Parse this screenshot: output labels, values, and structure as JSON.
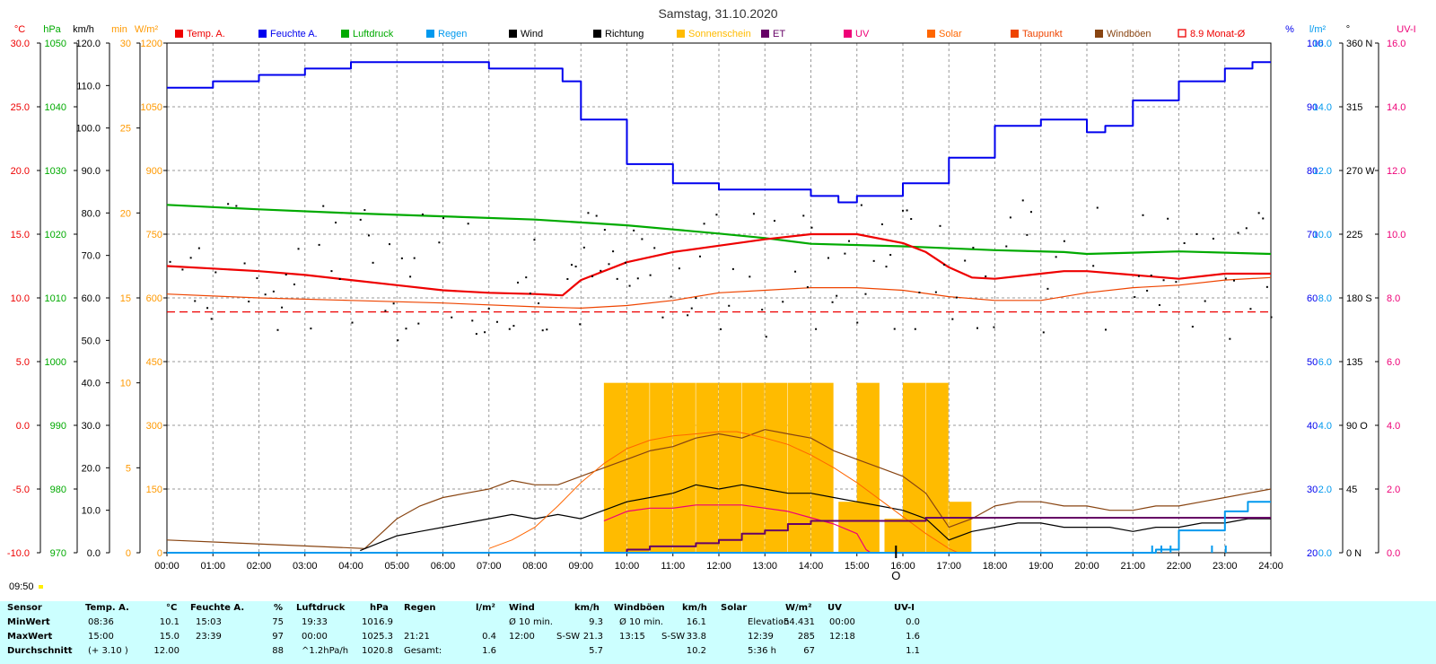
{
  "title": "Samstag, 31.10.2020",
  "colors": {
    "temp": "#ee0000",
    "humidity": "#0000ee",
    "pressure": "#00aa00",
    "rain": "#0099ee",
    "wind": "#000000",
    "direction": "#000000",
    "sunshine": "#ffbb00",
    "et": "#660066",
    "uv": "#ee0077",
    "solar": "#ff6600",
    "dewpoint": "#ee4400",
    "gust": "#884411",
    "month_avg": "#ee0000"
  },
  "legend": [
    {
      "label": "Temp. A.",
      "color": "#ee0000",
      "kind": "box"
    },
    {
      "label": "Feuchte A.",
      "color": "#0000ee",
      "kind": "box"
    },
    {
      "label": "Luftdruck",
      "color": "#00aa00",
      "kind": "box"
    },
    {
      "label": "Regen",
      "color": "#0099ee",
      "kind": "box"
    },
    {
      "label": "Wind",
      "color": "#000000",
      "kind": "box"
    },
    {
      "label": "Richtung",
      "color": "#000000",
      "kind": "box"
    },
    {
      "label": "Sonnenschein",
      "color": "#ffbb00",
      "kind": "box"
    },
    {
      "label": "ET",
      "color": "#660066",
      "kind": "box"
    },
    {
      "label": "UV",
      "color": "#ee0077",
      "kind": "box"
    },
    {
      "label": "Solar",
      "color": "#ff6600",
      "kind": "box"
    },
    {
      "label": "Taupunkt",
      "color": "#ee4400",
      "kind": "box"
    },
    {
      "label": "Windböen",
      "color": "#884411",
      "kind": "box"
    },
    {
      "label": "8.9 Monat-Ø",
      "color": "#ee0000",
      "kind": "outline"
    }
  ],
  "axes_left": [
    {
      "unit": "°C",
      "color": "#ee0000",
      "ticks": [
        "30.0",
        "25.0",
        "20.0",
        "15.0",
        "10.0",
        "5.0",
        "0.0",
        "-5.0",
        "-10.0"
      ]
    },
    {
      "unit": "hPa",
      "color": "#00aa00",
      "ticks": [
        "1050",
        "1040",
        "1030",
        "1020",
        "1010",
        "1000",
        "990",
        "980",
        "970"
      ]
    },
    {
      "unit": "km/h",
      "color": "#000000",
      "ticks": [
        "120.0",
        "110.0",
        "100.0",
        "90.0",
        "80.0",
        "70.0",
        "60.0",
        "50.0",
        "40.0",
        "30.0",
        "20.0",
        "10.0",
        "0.0"
      ]
    },
    {
      "unit": "min",
      "color": "#ff9900",
      "ticks": [
        "30",
        "25",
        "20",
        "15",
        "10",
        "5",
        "0"
      ]
    },
    {
      "unit": "W/m²",
      "color": "#ff9900",
      "ticks": [
        "1200",
        "1050",
        "900",
        "750",
        "600",
        "450",
        "300",
        "150",
        "0"
      ]
    }
  ],
  "axes_right": [
    {
      "unit": "%",
      "color": "#0000ee",
      "ticks": [
        "100",
        "90",
        "80",
        "70",
        "60",
        "50",
        "40",
        "30",
        "20"
      ]
    },
    {
      "unit": "l/m²",
      "color": "#0099ee",
      "ticks": [
        "16.0",
        "14.0",
        "12.0",
        "10.0",
        "8.0",
        "6.0",
        "4.0",
        "2.0",
        "0.0"
      ]
    },
    {
      "unit": "°",
      "color": "#000000",
      "ticks": [
        "360 N",
        "315",
        "270 W",
        "225",
        "180 S",
        "135",
        "90 O",
        "45",
        "0 N"
      ]
    },
    {
      "unit": "UV-I",
      "color": "#ee0077",
      "ticks": [
        "16.0",
        "14.0",
        "12.0",
        "10.0",
        "8.0",
        "6.0",
        "4.0",
        "2.0",
        "0.0"
      ]
    }
  ],
  "x_ticks": [
    "00:00",
    "01:00",
    "02:00",
    "03:00",
    "04:00",
    "05:00",
    "06:00",
    "07:00",
    "08:00",
    "09:00",
    "10:00",
    "11:00",
    "12:00",
    "13:00",
    "14:00",
    "15:00",
    "16:00",
    "17:00",
    "18:00",
    "19:00",
    "20:00",
    "21:00",
    "22:00",
    "23:00",
    "24:00"
  ],
  "bottom_left_time": "09:50",
  "moon_mark": "O",
  "chart_data": {
    "type": "line",
    "x_unit": "hour",
    "xlim": [
      0,
      24
    ],
    "month_avg_temp": 8.9,
    "series": [
      {
        "name": "Temp. A.",
        "axis": "temp",
        "points": [
          [
            0,
            12.5
          ],
          [
            1,
            12.3
          ],
          [
            2,
            12.1
          ],
          [
            3,
            11.8
          ],
          [
            4,
            11.4
          ],
          [
            5,
            11.0
          ],
          [
            6,
            10.6
          ],
          [
            7,
            10.4
          ],
          [
            8,
            10.3
          ],
          [
            8.6,
            10.2
          ],
          [
            9,
            11.4
          ],
          [
            10,
            12.8
          ],
          [
            11,
            13.6
          ],
          [
            12,
            14.1
          ],
          [
            13,
            14.6
          ],
          [
            14,
            15.0
          ],
          [
            15,
            15.0
          ],
          [
            16,
            14.3
          ],
          [
            16.5,
            13.6
          ],
          [
            17,
            12.4
          ],
          [
            17.5,
            11.6
          ],
          [
            18,
            11.5
          ],
          [
            19,
            11.9
          ],
          [
            19.5,
            12.1
          ],
          [
            20,
            12.1
          ],
          [
            21,
            11.8
          ],
          [
            22,
            11.5
          ],
          [
            23,
            11.9
          ],
          [
            24,
            11.9
          ]
        ]
      },
      {
        "name": "Feuchte A.",
        "axis": "hum",
        "points": [
          [
            0,
            93
          ],
          [
            0.6,
            93
          ],
          [
            1,
            94
          ],
          [
            2,
            95
          ],
          [
            3,
            96
          ],
          [
            4,
            97
          ],
          [
            6,
            97
          ],
          [
            7,
            96
          ],
          [
            8,
            96
          ],
          [
            8.6,
            94
          ],
          [
            9,
            88
          ],
          [
            10,
            81
          ],
          [
            11,
            78
          ],
          [
            12,
            77
          ],
          [
            13,
            77
          ],
          [
            14,
            76
          ],
          [
            14.6,
            75
          ],
          [
            15,
            76
          ],
          [
            16,
            78
          ],
          [
            17,
            82
          ],
          [
            18,
            87
          ],
          [
            19,
            88
          ],
          [
            20,
            86
          ],
          [
            20.4,
            87
          ],
          [
            21,
            91
          ],
          [
            22,
            94
          ],
          [
            23,
            96
          ],
          [
            23.6,
            97
          ],
          [
            24,
            97
          ]
        ]
      },
      {
        "name": "Luftdruck",
        "axis": "press",
        "points": [
          [
            0,
            1024.6
          ],
          [
            2,
            1023.9
          ],
          [
            4,
            1023.3
          ],
          [
            6,
            1022.8
          ],
          [
            8,
            1022.3
          ],
          [
            10,
            1021.4
          ],
          [
            12,
            1020.1
          ],
          [
            13,
            1019.4
          ],
          [
            14,
            1018.5
          ],
          [
            16,
            1018.1
          ],
          [
            18,
            1017.5
          ],
          [
            19.5,
            1017.2
          ],
          [
            20,
            1016.9
          ],
          [
            22,
            1017.3
          ],
          [
            24,
            1016.9
          ]
        ]
      },
      {
        "name": "Taupunkt",
        "axis": "temp",
        "points": [
          [
            0,
            10.3
          ],
          [
            2,
            10.0
          ],
          [
            4,
            9.8
          ],
          [
            6,
            9.6
          ],
          [
            8,
            9.3
          ],
          [
            9,
            9.2
          ],
          [
            10,
            9.4
          ],
          [
            11,
            9.8
          ],
          [
            12,
            10.4
          ],
          [
            13,
            10.6
          ],
          [
            14,
            10.8
          ],
          [
            15,
            10.8
          ],
          [
            16,
            10.6
          ],
          [
            17,
            10.1
          ],
          [
            18,
            9.8
          ],
          [
            19,
            9.8
          ],
          [
            20,
            10.4
          ],
          [
            21,
            10.8
          ],
          [
            22,
            11.0
          ],
          [
            23,
            11.4
          ],
          [
            24,
            11.6
          ]
        ]
      },
      {
        "name": "Solar",
        "axis": "solar",
        "points": [
          [
            7,
            10
          ],
          [
            7.5,
            30
          ],
          [
            8,
            60
          ],
          [
            8.5,
            110
          ],
          [
            9,
            165
          ],
          [
            9.5,
            210
          ],
          [
            10,
            245
          ],
          [
            10.5,
            265
          ],
          [
            11,
            275
          ],
          [
            11.5,
            280
          ],
          [
            12,
            285
          ],
          [
            12.39,
            285
          ],
          [
            12.8,
            275
          ],
          [
            13,
            270
          ],
          [
            13.5,
            255
          ],
          [
            14,
            230
          ],
          [
            14.5,
            200
          ],
          [
            15,
            165
          ],
          [
            15.5,
            125
          ],
          [
            16,
            85
          ],
          [
            16.5,
            45
          ],
          [
            17,
            10
          ],
          [
            17.2,
            0
          ]
        ]
      },
      {
        "name": "UV",
        "axis": "uv",
        "points": [
          [
            9.5,
            1.0
          ],
          [
            10,
            1.3
          ],
          [
            10.5,
            1.4
          ],
          [
            11,
            1.4
          ],
          [
            11.5,
            1.5
          ],
          [
            12,
            1.5
          ],
          [
            12.5,
            1.5
          ],
          [
            13,
            1.4
          ],
          [
            13.5,
            1.3
          ],
          [
            14,
            1.1
          ],
          [
            14.5,
            0.9
          ],
          [
            15,
            0.6
          ],
          [
            15.2,
            0.1
          ],
          [
            15.3,
            0
          ]
        ]
      },
      {
        "name": "ET",
        "axis": "uv",
        "points": [
          [
            9,
            0
          ],
          [
            10,
            0.1
          ],
          [
            10.5,
            0.2
          ],
          [
            11,
            0.2
          ],
          [
            11.5,
            0.3
          ],
          [
            12,
            0.4
          ],
          [
            12.5,
            0.6
          ],
          [
            13,
            0.7
          ],
          [
            13.5,
            0.9
          ],
          [
            14,
            1.0
          ],
          [
            14.5,
            1.0
          ],
          [
            15,
            1.0
          ],
          [
            15.5,
            1.0
          ],
          [
            16,
            1.0
          ],
          [
            16.5,
            1.1
          ],
          [
            24,
            1.1
          ]
        ]
      },
      {
        "name": "Regen",
        "axis": "rain",
        "points": [
          [
            0,
            0
          ],
          [
            21.2,
            0
          ],
          [
            21.5,
            0.1
          ],
          [
            22,
            0.7
          ],
          [
            23,
            1.3
          ],
          [
            23.5,
            1.6
          ],
          [
            24,
            1.6
          ]
        ]
      }
    ],
    "wind_points": [
      [
        4.2,
        0.5
      ],
      [
        5,
        4
      ],
      [
        5.5,
        5
      ],
      [
        6,
        6
      ],
      [
        6.5,
        7
      ],
      [
        7,
        8
      ],
      [
        7.5,
        9
      ],
      [
        8,
        8
      ],
      [
        8.5,
        9
      ],
      [
        9,
        8
      ],
      [
        9.5,
        10
      ],
      [
        10,
        12
      ],
      [
        10.5,
        13
      ],
      [
        11,
        14
      ],
      [
        11.5,
        16
      ],
      [
        12,
        15
      ],
      [
        12.5,
        16
      ],
      [
        13,
        15
      ],
      [
        13.5,
        14
      ],
      [
        14,
        14
      ],
      [
        14.5,
        13
      ],
      [
        15,
        12
      ],
      [
        15.5,
        11
      ],
      [
        16,
        10
      ],
      [
        16.5,
        8
      ],
      [
        17,
        3
      ],
      [
        17.5,
        5
      ],
      [
        18,
        6
      ],
      [
        18.5,
        7
      ],
      [
        19,
        7
      ],
      [
        19.5,
        6
      ],
      [
        20,
        6
      ],
      [
        20.5,
        6
      ],
      [
        21,
        5
      ],
      [
        21.5,
        6
      ],
      [
        22,
        6
      ],
      [
        22.5,
        7
      ],
      [
        23,
        7
      ],
      [
        23.5,
        8
      ],
      [
        24,
        8
      ]
    ],
    "gust_points": [
      [
        0,
        3
      ],
      [
        4.3,
        1
      ],
      [
        5,
        8
      ],
      [
        5.5,
        11
      ],
      [
        6,
        13
      ],
      [
        6.5,
        14
      ],
      [
        7,
        15
      ],
      [
        7.5,
        17
      ],
      [
        8,
        16
      ],
      [
        8.5,
        16
      ],
      [
        9,
        18
      ],
      [
        9.5,
        20
      ],
      [
        10,
        22
      ],
      [
        10.5,
        24
      ],
      [
        11,
        25
      ],
      [
        11.5,
        27
      ],
      [
        12,
        28
      ],
      [
        12.5,
        27
      ],
      [
        13,
        29
      ],
      [
        13.5,
        28
      ],
      [
        14,
        27
      ],
      [
        14.5,
        24
      ],
      [
        15,
        22
      ],
      [
        15.5,
        20
      ],
      [
        16,
        18
      ],
      [
        16.5,
        14
      ],
      [
        17,
        6
      ],
      [
        17.5,
        8
      ],
      [
        18,
        11
      ],
      [
        18.5,
        12
      ],
      [
        19,
        12
      ],
      [
        19.5,
        11
      ],
      [
        20,
        11
      ],
      [
        20.5,
        10
      ],
      [
        21,
        10
      ],
      [
        21.5,
        11
      ],
      [
        22,
        11
      ],
      [
        22.5,
        12
      ],
      [
        23,
        13
      ],
      [
        23.5,
        14
      ],
      [
        24,
        15
      ]
    ],
    "sunshine_minutes": [
      [
        9.5,
        10
      ],
      [
        10,
        10
      ],
      [
        10.5,
        10
      ],
      [
        11,
        10
      ],
      [
        11.5,
        10
      ],
      [
        12,
        10
      ],
      [
        12.5,
        10
      ],
      [
        13,
        10
      ],
      [
        13.5,
        10
      ],
      [
        14,
        10
      ],
      [
        14.6,
        3
      ],
      [
        15,
        10
      ],
      [
        15.6,
        2
      ],
      [
        16,
        10
      ],
      [
        16.5,
        10
      ],
      [
        17,
        3
      ]
    ],
    "direction_range_deg": [
      150,
      250
    ],
    "stats": {
      "headers": {
        "sensor": "Sensor",
        "temp": "Temp. A.",
        "temp_unit": "°C",
        "hum": "Feuchte A.",
        "hum_unit": "%",
        "press": "Luftdruck",
        "press_unit": "hPa",
        "rain": "Regen",
        "rain_unit": "l/m²",
        "wind": "Wind",
        "wind_unit": "km/h",
        "gust": "Windböen",
        "gust_unit": "km/h",
        "solar": "Solar",
        "solar_unit": "W/m²",
        "uv": "UV",
        "uv_unit": "UV-I"
      },
      "rows": [
        {
          "label": "MinWert",
          "temp_t": "08:36",
          "temp_v": "10.1",
          "hum_t": "15:03",
          "hum_v": "75",
          "press_t": "19:33",
          "press_v": "1016.9",
          "rain_t": "",
          "rain_v": "",
          "wind_t": "Ø 10 min.",
          "wind_v": "9.3",
          "gust_t": "Ø 10 min.",
          "gust_v": "16.1",
          "solar_t": "Elevation",
          "solar_v": "-54.431",
          "uv_t": "00:00",
          "uv_v": "0.0"
        },
        {
          "label": "MaxWert",
          "temp_t": "15:00",
          "temp_v": "15.0",
          "hum_t": "23:39",
          "hum_v": "97",
          "press_t": "00:00",
          "press_v": "1025.3",
          "rain_t": "21:21",
          "rain_v": "0.4",
          "wind_t": "12:00",
          "wind_dir": "S-SW",
          "wind_v": "21.3",
          "gust_t": "13:15",
          "gust_dir": "S-SW",
          "gust_v": "33.8",
          "solar_t": "12:39",
          "solar_v": "285",
          "uv_t": "12:18",
          "uv_v": "1.6"
        },
        {
          "label": "Durchschnitt",
          "temp_t": "(+ 3.10 )",
          "temp_v": "12.00",
          "hum_t": "",
          "hum_v": "88",
          "press_t": "^1.2hPa/h",
          "press_v": "1020.8",
          "rain_t": "Gesamt:",
          "rain_v": "1.6",
          "wind_t": "",
          "wind_v": "5.7",
          "gust_t": "",
          "gust_v": "10.2",
          "solar_t": "5:36 h",
          "solar_v": "67",
          "uv_t": "",
          "uv_v": "1.1"
        }
      ]
    }
  }
}
